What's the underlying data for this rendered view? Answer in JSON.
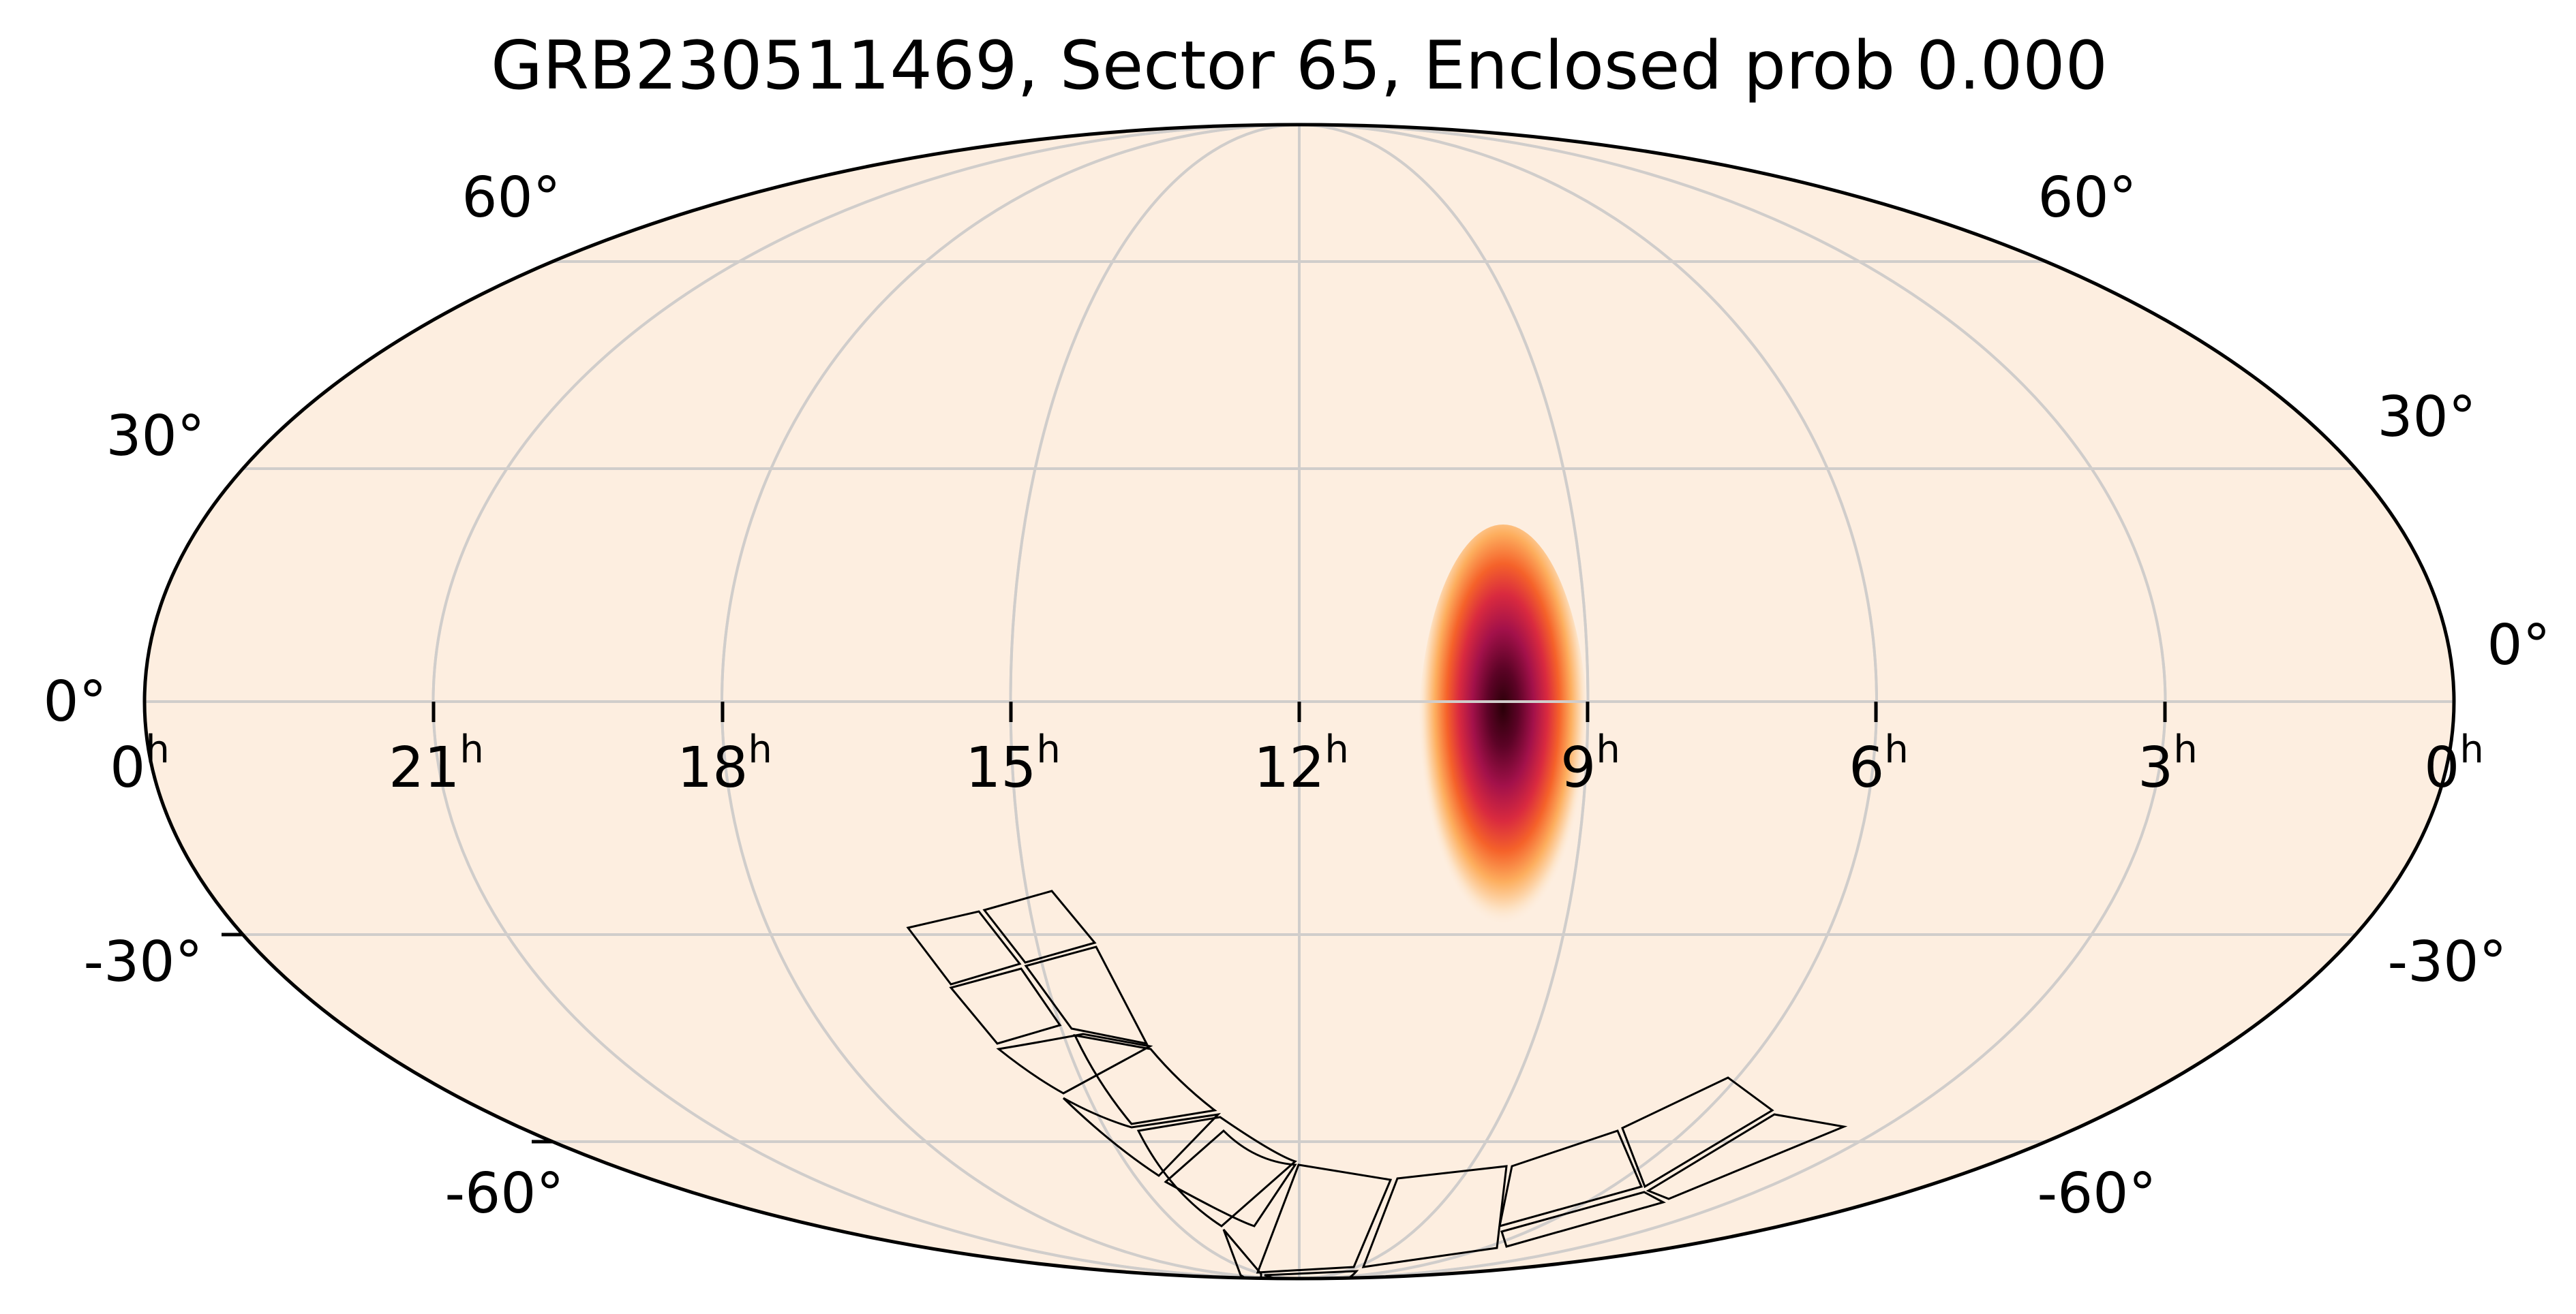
{
  "title": "GRB230511469, Sector 65, Enclosed prob 0.000",
  "projection": "mollweide",
  "colors": {
    "background": "#fdeee0",
    "grid": "#d0cdcb",
    "outline": "#000000",
    "footprint": "#000000",
    "colormap": [
      "#fdeee0",
      "#fdb36a",
      "#f5571f",
      "#d11d4d",
      "#8c0c3e",
      "#2a0008"
    ]
  },
  "lat_labels_left": [
    "60°",
    "30°",
    "0°",
    "-30°",
    "-60°"
  ],
  "lat_labels_right": [
    "60°",
    "30°",
    "0°",
    "-30°",
    "-60°"
  ],
  "ra_labels": [
    {
      "num": "0",
      "sup": "h"
    },
    {
      "num": "21",
      "sup": "h"
    },
    {
      "num": "18",
      "sup": "h"
    },
    {
      "num": "15",
      "sup": "h"
    },
    {
      "num": "12",
      "sup": "h"
    },
    {
      "num": "9",
      "sup": "h"
    },
    {
      "num": "6",
      "sup": "h"
    },
    {
      "num": "3",
      "sup": "h"
    },
    {
      "num": "0",
      "sup": "h"
    }
  ],
  "probability_peak": {
    "ra_hours": 9.6,
    "dec_deg": -1
  },
  "sector": {
    "number": 65,
    "cameras": 4,
    "ccds_per_camera": 4,
    "note_visible": "footprint outlines drawn in southern sky"
  }
}
